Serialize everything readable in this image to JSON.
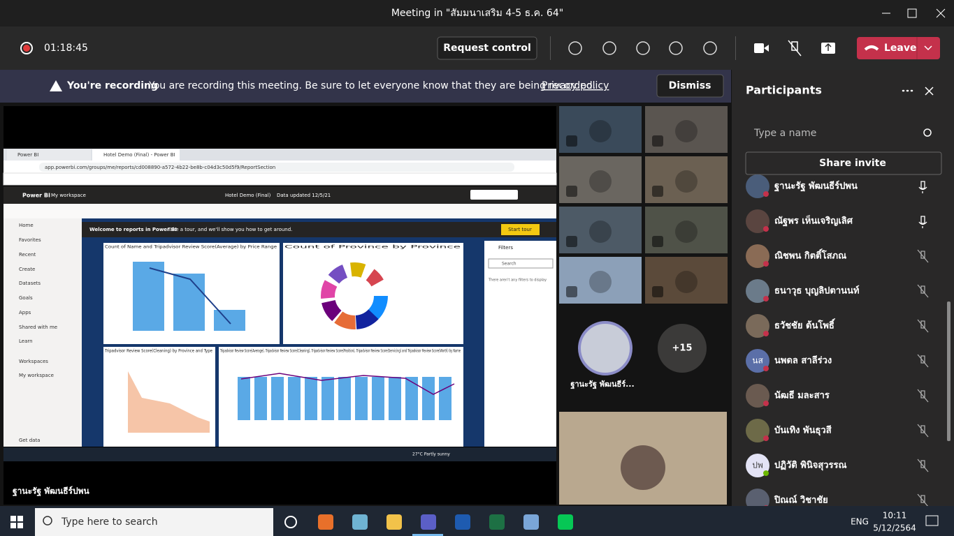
{
  "window": {
    "title": "Meeting in \"สัมมนาเสริม 4-5 ธ.ค. 64\""
  },
  "toolbar": {
    "timer": "01:18:45",
    "request_control": "Request control",
    "leave": "Leave"
  },
  "banner": {
    "heading": "You're recording",
    "message": "You are recording this meeting. Be sure to let everyone know that they are being recorded.",
    "link": "Privacy policy",
    "dismiss": "Dismiss"
  },
  "stage": {
    "presenter": "ฐานะรัฐ พัฒนธีร์ปพน",
    "spotlight_name": "ฐานะรัฐ พัฒนธีร์...",
    "overflow": "+15"
  },
  "shared_screen": {
    "tabs": [
      "Power BI",
      "Hotel Demo (Final) - Power BI"
    ],
    "url": "app.powerbi.com/groups/me/reports/cd008890-a572-4b22-be8b-c04d3c50d5f9/ReportSection",
    "app": "Power BI",
    "workspace": "My workspace",
    "report": "Hotel Demo (Final)",
    "updated": "Data updated 12/5/21",
    "nav": [
      "Home",
      "Favorites",
      "Recent",
      "Create",
      "Datasets",
      "Goals",
      "Apps",
      "Shared with me",
      "Learn",
      "Workspaces",
      "My workspace",
      "Get data"
    ],
    "welcome": "Welcome to reports in Power BI",
    "welcome_text": "Take a tour, and we'll show you how to get around.",
    "start_tour": "Start tour",
    "charts": [
      "Count of Name and Tripadvisor Review Score(Average) by Price Range",
      "Count of Province by Province",
      "Tripadvisor Review Score(Cleaning) by Province and Type",
      "Tripadvisor Review Score(Average), Tripadvisor Review Score(Cleaning), Tripadvisor Review Score(Position), Tripadvisor Review Score(Servicing) and Tripadvisor Review Score(Worth) by Name"
    ],
    "filters": {
      "title": "Filters",
      "search": "Search",
      "empty": "There aren't any filters to display"
    },
    "weather": "27°C Partly sunny"
  },
  "participants": {
    "title": "Participants",
    "search_placeholder": "Type a name",
    "share_invite": "Share invite",
    "people": [
      {
        "name": "ฐานะรัฐ พัฒนธีร์ปพน"
      },
      {
        "name": "ณัฐพร เห็นเจริญเลิศ"
      },
      {
        "name": "ณิชพน กิตติ์โสภณ"
      },
      {
        "name": "ธนาวุธ บุญลิปตานนท์"
      },
      {
        "name": "ธวัชชัย ต้นโพธิ์"
      },
      {
        "name": "นพดล สาลีร่วง",
        "initials": "นส"
      },
      {
        "name": "นัฒธี มละสาร"
      },
      {
        "name": "บันเทิง พันธุวสี"
      },
      {
        "name": "ปฏิวัติ พินิจสุวรรณ",
        "initials": "ปพ"
      },
      {
        "name": "ปิณณ์ วิชาชัย"
      }
    ]
  },
  "taskbar": {
    "search": "Type here to search",
    "lang": "ENG",
    "time": "10:11",
    "date": "5/12/2564"
  }
}
